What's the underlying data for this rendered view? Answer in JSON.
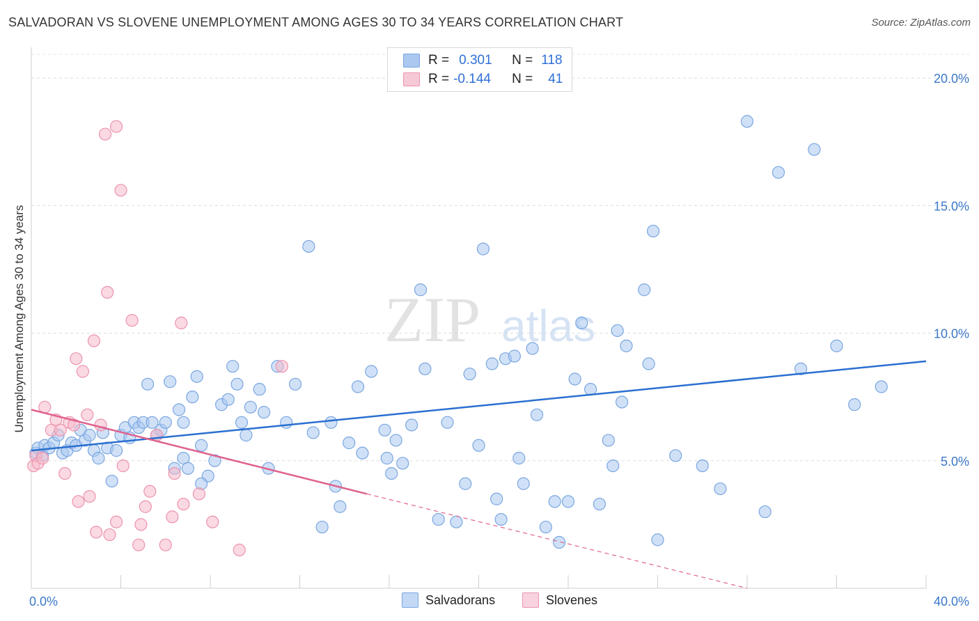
{
  "header": {
    "title": "SALVADORAN VS SLOVENE UNEMPLOYMENT AMONG AGES 30 TO 34 YEARS CORRELATION CHART",
    "source": "Source: ZipAtlas.com"
  },
  "legend_box": {
    "rows": [
      {
        "r_label": "R =",
        "r_value": "0.301",
        "n_label": "N =",
        "n_value": "118"
      },
      {
        "r_label": "R =",
        "r_value": "-0.144",
        "n_label": "N =",
        "n_value": "41"
      }
    ]
  },
  "watermark": {
    "zip": "ZIP",
    "atlas": "atlas"
  },
  "bottom_legend": [
    {
      "label": "Salvadorans"
    },
    {
      "label": "Slovenes"
    }
  ],
  "colors": {
    "salvadorans_fill": "#aac8f0",
    "salvadorans_stroke": "#7aa6e0",
    "salvadorans_line": "#2a6fcf",
    "slovenes_fill": "#f6b9cb",
    "slovenes_stroke": "#ec93ad",
    "slovenes_line": "#e0628f",
    "tick_text": "#3b78c9"
  },
  "chart_data": {
    "type": "scatter",
    "title": "SALVADORAN VS SLOVENE UNEMPLOYMENT AMONG AGES 30 TO 34 YEARS CORRELATION CHART",
    "xlabel": "",
    "ylabel": "Unemployment Among Ages 30 to 34 years",
    "xlim": [
      0,
      40
    ],
    "ylim": [
      0,
      20
    ],
    "x_tick_labels": [
      "0.0%",
      "40.0%"
    ],
    "y_ticks": [
      5,
      10,
      15,
      20
    ],
    "y_tick_labels": [
      "5.0%",
      "10.0%",
      "15.0%",
      "20.0%"
    ],
    "grid": true,
    "legend_position": "top-center",
    "series": [
      {
        "name": "Salvadorans",
        "r": 0.301,
        "n": 118,
        "trend": {
          "x": [
            0,
            40
          ],
          "y": [
            5.4,
            8.9
          ]
        },
        "points": [
          [
            0.2,
            5.3
          ],
          [
            0.3,
            5.5
          ],
          [
            0.5,
            5.2
          ],
          [
            0.6,
            5.6
          ],
          [
            0.8,
            5.5
          ],
          [
            1.0,
            5.7
          ],
          [
            1.2,
            6.0
          ],
          [
            1.4,
            5.3
          ],
          [
            1.6,
            5.4
          ],
          [
            1.8,
            5.7
          ],
          [
            2.0,
            5.6
          ],
          [
            2.2,
            6.2
          ],
          [
            2.4,
            5.8
          ],
          [
            2.6,
            6.0
          ],
          [
            2.8,
            5.4
          ],
          [
            3.0,
            5.1
          ],
          [
            3.2,
            6.1
          ],
          [
            3.4,
            5.5
          ],
          [
            3.6,
            4.2
          ],
          [
            3.8,
            5.4
          ],
          [
            4.0,
            6.0
          ],
          [
            4.2,
            6.3
          ],
          [
            4.4,
            5.9
          ],
          [
            4.6,
            6.5
          ],
          [
            4.8,
            6.3
          ],
          [
            5.0,
            6.5
          ],
          [
            5.2,
            8.0
          ],
          [
            5.4,
            6.5
          ],
          [
            5.6,
            6.0
          ],
          [
            5.8,
            6.2
          ],
          [
            6.0,
            6.5
          ],
          [
            6.2,
            8.1
          ],
          [
            6.4,
            4.7
          ],
          [
            6.6,
            7.0
          ],
          [
            6.8,
            5.1
          ],
          [
            7.0,
            4.7
          ],
          [
            7.2,
            7.5
          ],
          [
            7.4,
            8.3
          ],
          [
            7.6,
            5.6
          ],
          [
            7.9,
            4.4
          ],
          [
            8.2,
            5.0
          ],
          [
            8.5,
            7.2
          ],
          [
            8.8,
            7.4
          ],
          [
            9.0,
            8.7
          ],
          [
            9.2,
            8.0
          ],
          [
            9.4,
            6.5
          ],
          [
            9.6,
            6.0
          ],
          [
            9.8,
            7.1
          ],
          [
            10.2,
            7.8
          ],
          [
            10.6,
            4.7
          ],
          [
            11.0,
            8.7
          ],
          [
            11.4,
            6.5
          ],
          [
            11.8,
            8.0
          ],
          [
            12.4,
            13.4
          ],
          [
            12.6,
            6.1
          ],
          [
            13.0,
            2.4
          ],
          [
            13.4,
            6.5
          ],
          [
            13.6,
            4.0
          ],
          [
            13.8,
            3.2
          ],
          [
            14.2,
            5.7
          ],
          [
            14.6,
            7.9
          ],
          [
            14.8,
            5.3
          ],
          [
            15.2,
            8.5
          ],
          [
            15.8,
            6.2
          ],
          [
            16.1,
            4.5
          ],
          [
            16.3,
            5.8
          ],
          [
            16.6,
            4.9
          ],
          [
            17.0,
            6.4
          ],
          [
            17.4,
            11.7
          ],
          [
            17.6,
            8.6
          ],
          [
            18.2,
            2.7
          ],
          [
            18.6,
            6.5
          ],
          [
            19.0,
            2.6
          ],
          [
            19.4,
            4.1
          ],
          [
            19.6,
            8.4
          ],
          [
            20.0,
            5.6
          ],
          [
            20.2,
            13.3
          ],
          [
            20.6,
            8.8
          ],
          [
            20.8,
            3.5
          ],
          [
            21.0,
            2.7
          ],
          [
            21.2,
            9.0
          ],
          [
            21.6,
            9.1
          ],
          [
            21.8,
            5.1
          ],
          [
            22.0,
            4.1
          ],
          [
            22.4,
            9.4
          ],
          [
            22.6,
            6.8
          ],
          [
            23.0,
            2.4
          ],
          [
            23.4,
            3.4
          ],
          [
            23.6,
            1.8
          ],
          [
            24.0,
            3.4
          ],
          [
            24.6,
            10.4
          ],
          [
            25.0,
            7.8
          ],
          [
            25.4,
            3.3
          ],
          [
            25.8,
            5.8
          ],
          [
            26.0,
            4.8
          ],
          [
            26.2,
            10.1
          ],
          [
            26.4,
            7.3
          ],
          [
            26.6,
            9.5
          ],
          [
            27.4,
            11.7
          ],
          [
            27.6,
            8.8
          ],
          [
            27.8,
            14.0
          ],
          [
            28.0,
            1.9
          ],
          [
            28.8,
            5.2
          ],
          [
            30.0,
            4.8
          ],
          [
            30.8,
            3.9
          ],
          [
            32.0,
            18.3
          ],
          [
            32.8,
            3.0
          ],
          [
            33.4,
            16.3
          ],
          [
            35.0,
            17.2
          ],
          [
            36.0,
            9.5
          ],
          [
            36.8,
            7.2
          ],
          [
            38.0,
            7.9
          ],
          [
            34.4,
            8.6
          ],
          [
            24.3,
            8.2
          ],
          [
            15.9,
            5.1
          ],
          [
            10.4,
            6.9
          ],
          [
            7.6,
            4.1
          ],
          [
            6.8,
            6.5
          ]
        ]
      },
      {
        "name": "Slovenes",
        "r": -0.144,
        "n": 41,
        "trend": {
          "x": [
            0,
            15.0
          ],
          "y": [
            7.0,
            3.7
          ]
        },
        "trend_dashed": {
          "x": [
            15.0,
            32.0
          ],
          "y": [
            3.7,
            0.0
          ]
        },
        "points": [
          [
            0.1,
            4.8
          ],
          [
            0.2,
            5.2
          ],
          [
            0.3,
            4.9
          ],
          [
            0.5,
            5.1
          ],
          [
            0.6,
            7.1
          ],
          [
            0.9,
            6.2
          ],
          [
            1.1,
            6.6
          ],
          [
            1.3,
            6.2
          ],
          [
            1.5,
            4.5
          ],
          [
            1.7,
            6.5
          ],
          [
            1.9,
            6.4
          ],
          [
            2.0,
            9.0
          ],
          [
            2.1,
            3.4
          ],
          [
            2.3,
            8.5
          ],
          [
            2.5,
            6.8
          ],
          [
            2.6,
            3.6
          ],
          [
            2.8,
            9.7
          ],
          [
            2.9,
            2.2
          ],
          [
            3.1,
            6.4
          ],
          [
            3.3,
            17.8
          ],
          [
            3.4,
            11.6
          ],
          [
            3.5,
            2.1
          ],
          [
            3.8,
            18.1
          ],
          [
            3.8,
            2.6
          ],
          [
            4.0,
            15.6
          ],
          [
            4.1,
            4.8
          ],
          [
            4.5,
            10.5
          ],
          [
            4.8,
            1.7
          ],
          [
            4.9,
            2.5
          ],
          [
            5.1,
            3.2
          ],
          [
            5.3,
            3.8
          ],
          [
            5.6,
            6.0
          ],
          [
            6.0,
            1.7
          ],
          [
            6.3,
            2.8
          ],
          [
            6.4,
            4.5
          ],
          [
            6.7,
            10.4
          ],
          [
            6.8,
            3.3
          ],
          [
            7.5,
            3.7
          ],
          [
            8.1,
            2.6
          ],
          [
            9.3,
            1.5
          ],
          [
            11.2,
            8.7
          ]
        ]
      }
    ]
  }
}
